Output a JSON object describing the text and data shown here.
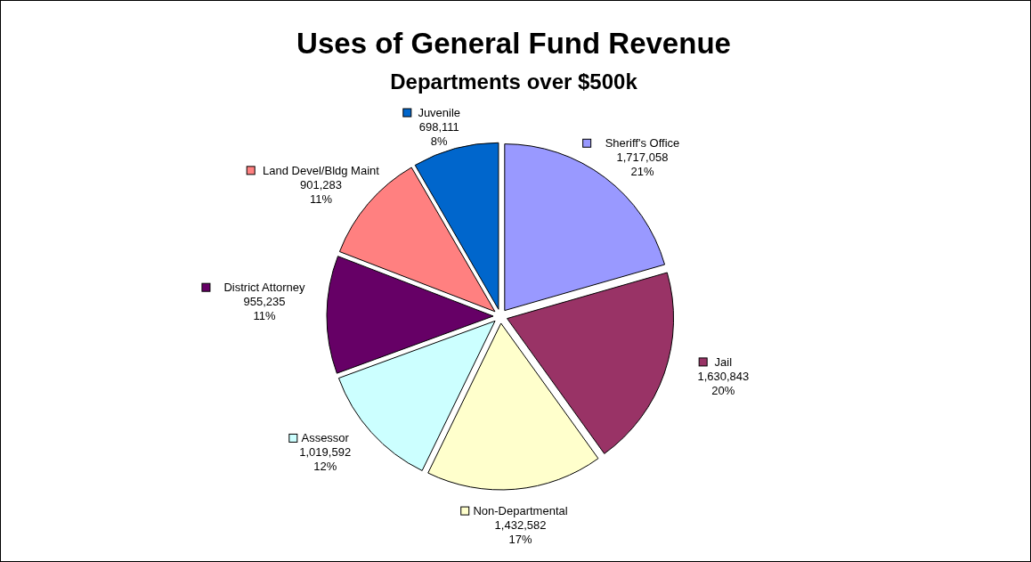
{
  "chart_data": {
    "type": "pie",
    "title": "Uses of General Fund Revenue",
    "subtitle": "Departments over $500k",
    "categories": [
      "Sheriff's Office",
      "Jail",
      "Non-Departmental",
      "Assessor",
      "District Attorney",
      "Land Devel/Bldg Maint",
      "Juvenile"
    ],
    "values": [
      1717058,
      1630843,
      1432582,
      1019592,
      955235,
      901283,
      698111
    ],
    "legend": true,
    "colors": [
      "#9999ff",
      "#993366",
      "#ffffcc",
      "#ccffff",
      "#660066",
      "#ff8080",
      "#0066cc"
    ],
    "value_labels": [
      "1,717,058\n21%",
      "1,630,843\n20%",
      "1,432,582\n17%",
      "1,019,592\n12%",
      "955,235\n11%",
      "901,283\n11%",
      "698,111\n8%"
    ]
  }
}
